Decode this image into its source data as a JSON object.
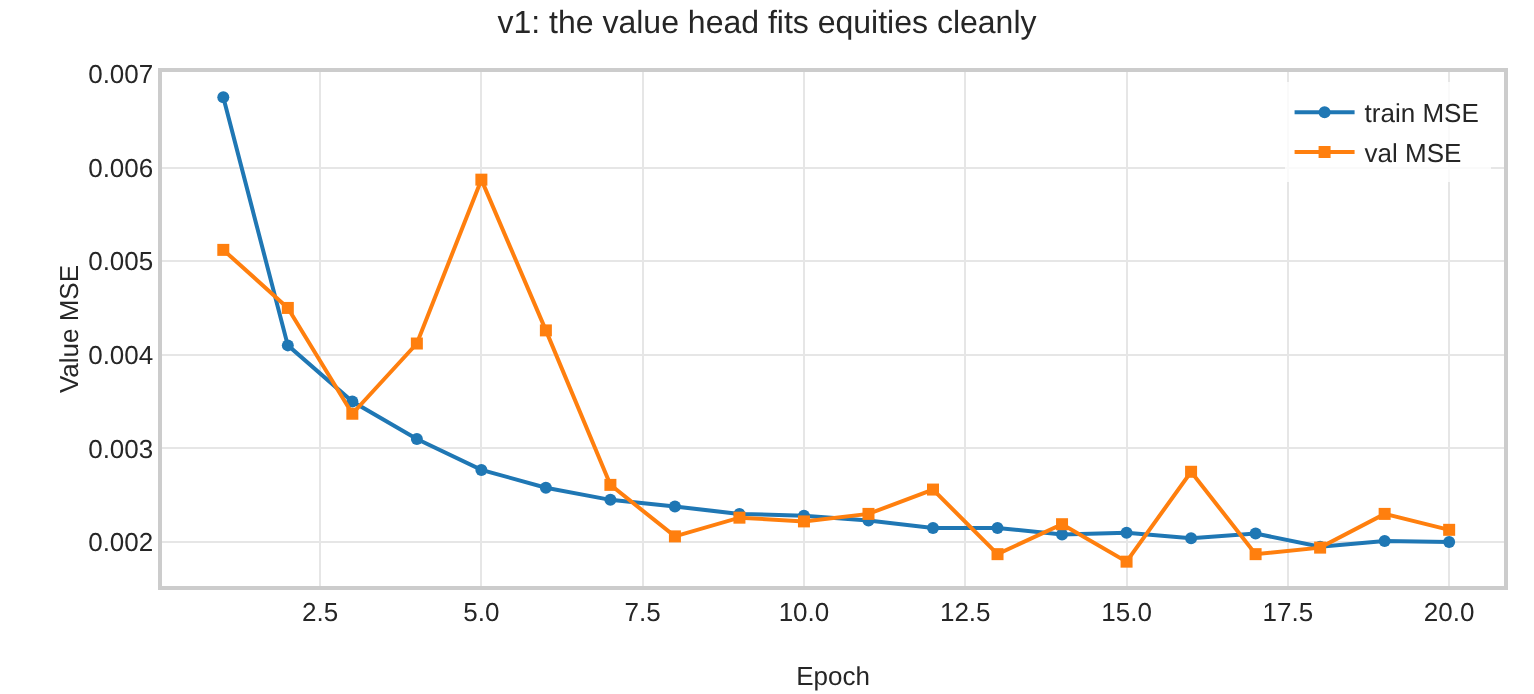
{
  "chart_data": {
    "type": "line",
    "title": "v1: the value head fits equities cleanly",
    "xlabel": "Epoch",
    "ylabel": "Value MSE",
    "x": [
      1,
      2,
      3,
      4,
      5,
      6,
      7,
      8,
      9,
      10,
      11,
      12,
      13,
      14,
      15,
      16,
      17,
      18,
      19,
      20
    ],
    "series": [
      {
        "name": "train MSE",
        "color": "#1f77b4",
        "marker": "circle",
        "values": [
          0.00675,
          0.0041,
          0.0035,
          0.0031,
          0.00277,
          0.00258,
          0.00245,
          0.00238,
          0.0023,
          0.00228,
          0.00223,
          0.00215,
          0.00215,
          0.00208,
          0.0021,
          0.00204,
          0.00209,
          0.00195,
          0.00201,
          0.002
        ]
      },
      {
        "name": "val MSE",
        "color": "#ff7f0e",
        "marker": "square",
        "values": [
          0.00512,
          0.0045,
          0.00337,
          0.00412,
          0.00587,
          0.00426,
          0.00261,
          0.00206,
          0.00226,
          0.00222,
          0.0023,
          0.00256,
          0.00187,
          0.00219,
          0.00179,
          0.00275,
          0.00187,
          0.00194,
          0.0023,
          0.00213
        ]
      }
    ],
    "xlim": [
      0.05,
      20.85
    ],
    "xticks": [
      {
        "value": 2.5,
        "label": "2.5"
      },
      {
        "value": 5,
        "label": "5.0"
      },
      {
        "value": 7.5,
        "label": "7.5"
      },
      {
        "value": 10,
        "label": "10.0"
      },
      {
        "value": 12.5,
        "label": "12.5"
      },
      {
        "value": 15,
        "label": "15.0"
      },
      {
        "value": 17.5,
        "label": "17.5"
      },
      {
        "value": 20,
        "label": "20.0"
      }
    ],
    "ylim": [
      0.00153,
      0.00702
    ],
    "yticks": [
      0.002,
      0.003,
      0.004,
      0.005,
      0.006,
      0.007
    ],
    "grid": true,
    "legend": "top right",
    "line_style": "solid"
  }
}
